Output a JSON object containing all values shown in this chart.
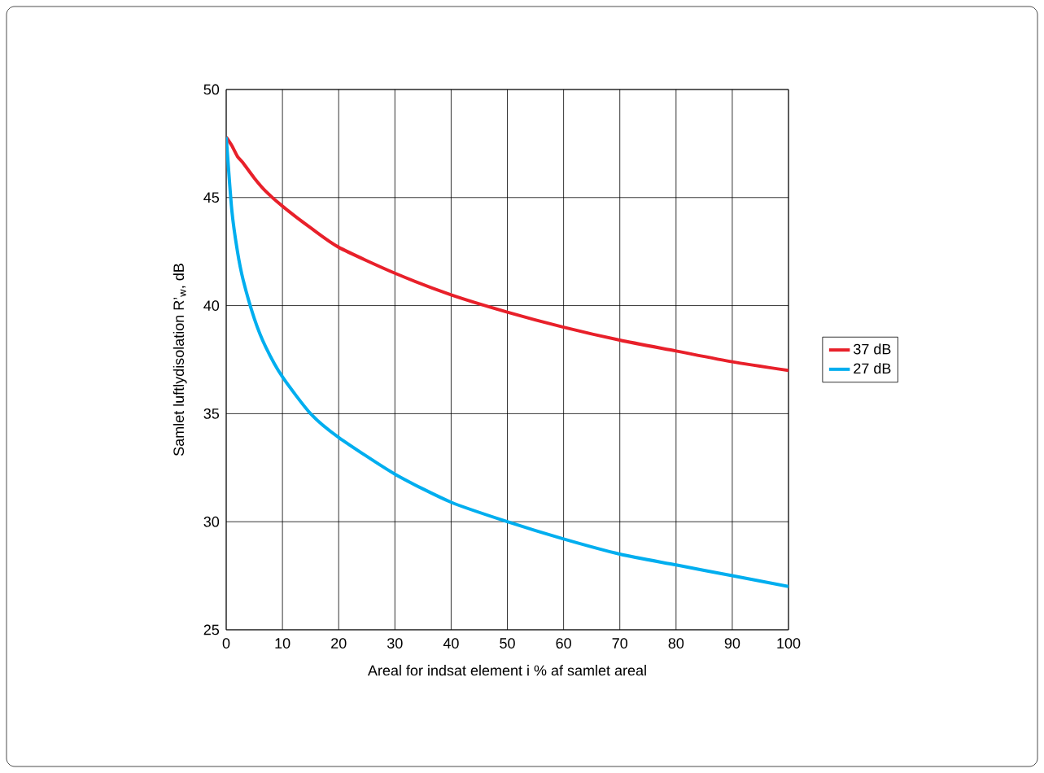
{
  "chart_data": {
    "type": "line",
    "xlabel": "Areal for indsat element i % af samlet areal",
    "ylabel": "Samlet luftlydisolation R’$_{w}$, dB",
    "xlim": [
      0,
      100
    ],
    "ylim": [
      25,
      50
    ],
    "xticks": [
      0,
      10,
      20,
      30,
      40,
      50,
      60,
      70,
      80,
      90,
      100
    ],
    "yticks": [
      25,
      30,
      35,
      40,
      45,
      50
    ],
    "grid": true,
    "legend": "right",
    "x": [
      0,
      1,
      2,
      3,
      5,
      7,
      10,
      15,
      20,
      30,
      40,
      50,
      60,
      70,
      80,
      90,
      100
    ],
    "series": [
      {
        "name": "37 dB",
        "color": "#e8202a",
        "values": [
          47.8,
          47.4,
          46.9,
          46.6,
          45.9,
          45.3,
          44.6,
          43.6,
          42.7,
          41.5,
          40.5,
          39.7,
          39.0,
          38.4,
          37.9,
          37.4,
          37.0
        ]
      },
      {
        "name": "27 dB",
        "color": "#00aeef",
        "values": [
          47.8,
          44.4,
          42.5,
          41.2,
          39.4,
          38.1,
          36.7,
          35.0,
          33.9,
          32.2,
          30.9,
          30.0,
          29.2,
          28.5,
          28.0,
          27.5,
          27.0
        ]
      }
    ]
  }
}
